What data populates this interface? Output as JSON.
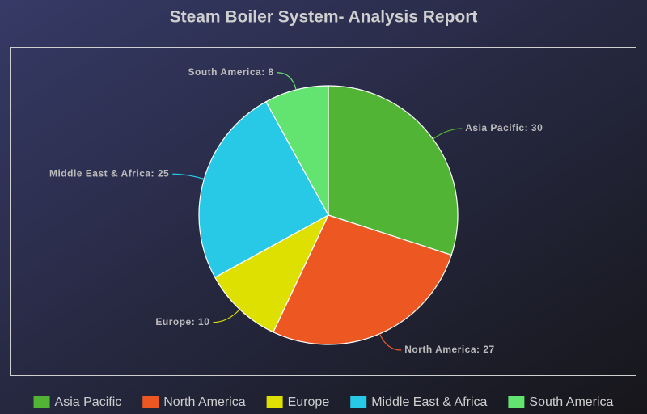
{
  "chart_data": {
    "type": "pie",
    "title": "Steam Boiler System- Analysis Report",
    "categories": [
      "Asia Pacific",
      "North America",
      "Europe",
      "Middle East & Africa",
      "South America"
    ],
    "values": [
      30,
      27,
      10,
      25,
      8
    ],
    "value_labels": [
      "Asia Pacific: 30",
      "North America: 27",
      "Europe: 10",
      "Middle East & Africa: 25",
      "South America: 8"
    ],
    "colors": [
      "#52b435",
      "#ed5722",
      "#dde000",
      "#27c9e6",
      "#63e36f"
    ],
    "legend": "bottom"
  }
}
